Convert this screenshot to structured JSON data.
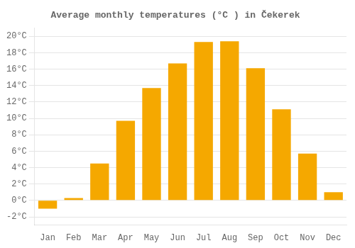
{
  "chart_data": {
    "type": "bar",
    "title": "Average monthly temperatures (°C ) in Čekerek",
    "categories": [
      "Jan",
      "Feb",
      "Mar",
      "Apr",
      "May",
      "Jun",
      "Jul",
      "Aug",
      "Sep",
      "Oct",
      "Nov",
      "Dec"
    ],
    "values": [
      -1.0,
      0.3,
      4.5,
      9.7,
      13.7,
      16.7,
      19.3,
      19.4,
      16.1,
      11.1,
      5.7,
      1.0
    ],
    "color": "#F5A800",
    "ylim": [
      -3,
      21
    ],
    "yticks": [
      {
        "value": -2,
        "label": "-2°C"
      },
      {
        "value": 0,
        "label": "0°C"
      },
      {
        "value": 2,
        "label": "2°C"
      },
      {
        "value": 4,
        "label": "4°C"
      },
      {
        "value": 6,
        "label": "6°C"
      },
      {
        "value": 8,
        "label": "8°C"
      },
      {
        "value": 10,
        "label": "10°C"
      },
      {
        "value": 12,
        "label": "12°C"
      },
      {
        "value": 14,
        "label": "14°C"
      },
      {
        "value": 16,
        "label": "16°C"
      },
      {
        "value": 18,
        "label": "18°C"
      },
      {
        "value": 20,
        "label": "20°C"
      }
    ],
    "grid": true
  }
}
